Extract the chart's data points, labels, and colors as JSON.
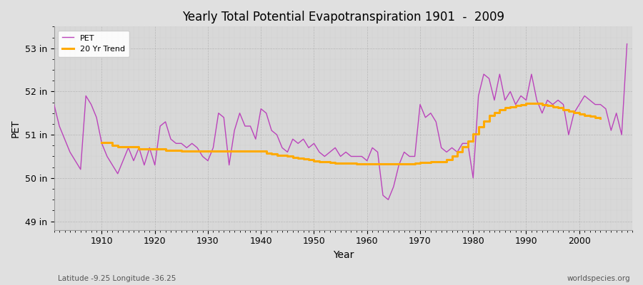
{
  "title": "Yearly Total Potential Evapotranspiration 1901  -  2009",
  "xlabel": "Year",
  "ylabel": "PET",
  "subtitle_left": "Latitude -9.25 Longitude -36.25",
  "subtitle_right": "worldspecies.org",
  "ylim": [
    48.8,
    53.5
  ],
  "yticks": [
    49,
    50,
    51,
    52,
    53
  ],
  "ytick_labels": [
    "49 in",
    "50 in",
    "51 in",
    "52 in",
    "53 in"
  ],
  "pet_color": "#bb44bb",
  "trend_color": "#ffaa00",
  "bg_color": "#e0e0e0",
  "plot_bg_color": "#d8d8d8",
  "years": [
    1901,
    1902,
    1903,
    1904,
    1905,
    1906,
    1907,
    1908,
    1909,
    1910,
    1911,
    1912,
    1913,
    1914,
    1915,
    1916,
    1917,
    1918,
    1919,
    1920,
    1921,
    1922,
    1923,
    1924,
    1925,
    1926,
    1927,
    1928,
    1929,
    1930,
    1931,
    1932,
    1933,
    1934,
    1935,
    1936,
    1937,
    1938,
    1939,
    1940,
    1941,
    1942,
    1943,
    1944,
    1945,
    1946,
    1947,
    1948,
    1949,
    1950,
    1951,
    1952,
    1953,
    1954,
    1955,
    1956,
    1957,
    1958,
    1959,
    1960,
    1961,
    1962,
    1963,
    1964,
    1965,
    1966,
    1967,
    1968,
    1969,
    1970,
    1971,
    1972,
    1973,
    1974,
    1975,
    1976,
    1977,
    1978,
    1979,
    1980,
    1981,
    1982,
    1983,
    1984,
    1985,
    1986,
    1987,
    1988,
    1989,
    1990,
    1991,
    1992,
    1993,
    1994,
    1995,
    1996,
    1997,
    1998,
    1999,
    2000,
    2001,
    2002,
    2003,
    2004,
    2005,
    2006,
    2007,
    2008,
    2009
  ],
  "pet_values": [
    51.7,
    51.2,
    50.9,
    50.6,
    50.4,
    50.2,
    51.9,
    51.7,
    51.4,
    50.8,
    50.5,
    50.3,
    50.1,
    50.4,
    50.7,
    50.4,
    50.7,
    50.3,
    50.7,
    50.3,
    51.2,
    51.3,
    50.9,
    50.8,
    50.8,
    50.7,
    50.8,
    50.7,
    50.5,
    50.4,
    50.7,
    51.5,
    51.4,
    50.3,
    51.1,
    51.5,
    51.2,
    51.2,
    50.9,
    51.6,
    51.5,
    51.1,
    51.0,
    50.7,
    50.6,
    50.9,
    50.8,
    50.9,
    50.7,
    50.8,
    50.6,
    50.5,
    50.6,
    50.7,
    50.5,
    50.6,
    50.5,
    50.5,
    50.5,
    50.4,
    50.7,
    50.6,
    49.6,
    49.5,
    49.8,
    50.3,
    50.6,
    50.5,
    50.5,
    51.7,
    51.4,
    51.5,
    51.3,
    50.7,
    50.6,
    50.7,
    50.6,
    50.8,
    50.8,
    50.0,
    51.9,
    52.4,
    52.3,
    51.8,
    52.4,
    51.8,
    52.0,
    51.7,
    51.9,
    51.8,
    52.4,
    51.8,
    51.5,
    51.8,
    51.7,
    51.8,
    51.7,
    51.0,
    51.5,
    51.7,
    51.9,
    51.8,
    51.7,
    51.7,
    51.6,
    51.1,
    51.5,
    51.0,
    53.1
  ],
  "trend_years": [
    1910,
    1911,
    1912,
    1913,
    1914,
    1915,
    1916,
    1917,
    1918,
    1919,
    1920,
    1921,
    1922,
    1923,
    1924,
    1925,
    1926,
    1927,
    1928,
    1929,
    1930,
    1931,
    1932,
    1933,
    1934,
    1935,
    1936,
    1937,
    1938,
    1939,
    1940,
    1941,
    1942,
    1943,
    1944,
    1945,
    1946,
    1947,
    1948,
    1949,
    1950,
    1951,
    1952,
    1953,
    1954,
    1955,
    1956,
    1957,
    1958,
    1959,
    1960,
    1961,
    1962,
    1963,
    1964,
    1965,
    1966,
    1967,
    1968,
    1969,
    1970,
    1971,
    1972,
    1973,
    1974,
    1975,
    1976,
    1977,
    1978,
    1979,
    1980,
    1981,
    1982,
    1983,
    1984,
    1985,
    1986,
    1987,
    1988,
    1989,
    1990,
    1991,
    1992,
    1993,
    1994,
    1995,
    1996,
    1997,
    1998,
    1999,
    2000,
    2001,
    2002,
    2003,
    2004
  ],
  "trend_values": [
    50.82,
    50.82,
    50.75,
    50.72,
    50.72,
    50.72,
    50.72,
    50.68,
    50.68,
    50.68,
    50.68,
    50.68,
    50.64,
    50.64,
    50.64,
    50.62,
    50.62,
    50.62,
    50.62,
    50.62,
    50.62,
    50.62,
    50.62,
    50.62,
    50.62,
    50.62,
    50.62,
    50.62,
    50.62,
    50.62,
    50.62,
    50.58,
    50.55,
    50.52,
    50.52,
    50.5,
    50.48,
    50.46,
    50.44,
    50.42,
    50.4,
    50.38,
    50.38,
    50.36,
    50.35,
    50.35,
    50.34,
    50.34,
    50.33,
    50.33,
    50.32,
    50.32,
    50.32,
    50.32,
    50.32,
    50.32,
    50.32,
    50.32,
    50.33,
    50.34,
    50.36,
    50.36,
    50.38,
    50.38,
    50.38,
    50.42,
    50.5,
    50.6,
    50.72,
    50.86,
    51.02,
    51.18,
    51.32,
    51.44,
    51.52,
    51.58,
    51.62,
    51.65,
    51.68,
    51.7,
    51.72,
    51.72,
    51.72,
    51.7,
    51.68,
    51.65,
    51.62,
    51.58,
    51.55,
    51.52,
    51.48,
    51.45,
    51.43,
    51.4,
    51.38
  ]
}
